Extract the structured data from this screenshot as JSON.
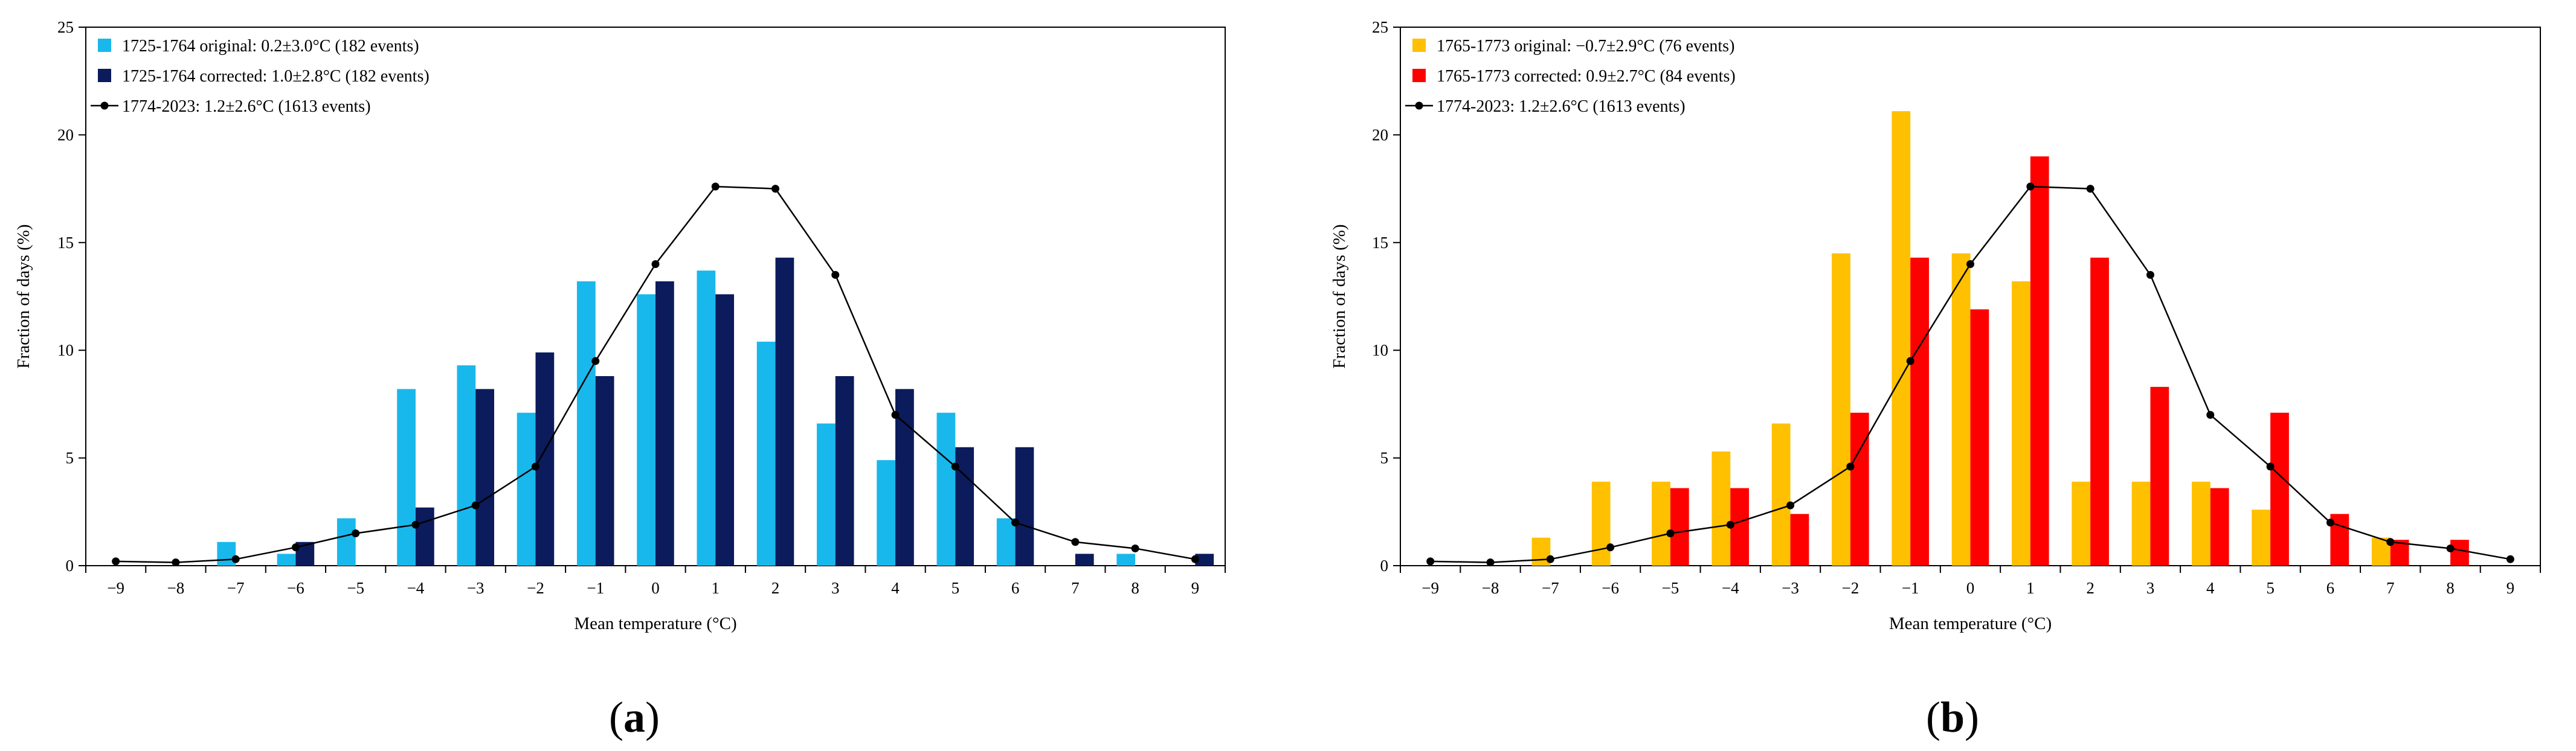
{
  "chart_data": [
    {
      "type": "bar",
      "panel_label_parts": [
        "(",
        "a",
        ")"
      ],
      "xlabel": "Mean temperature (°C)",
      "ylabel": "Fraction of days (%)",
      "ylim": [
        0,
        25
      ],
      "yticks": [
        0,
        5,
        10,
        15,
        20,
        25
      ],
      "categories": [
        -9,
        -8,
        -7,
        -6,
        -5,
        -4,
        -3,
        -2,
        -1,
        0,
        1,
        2,
        3,
        4,
        5,
        6,
        7,
        8,
        9
      ],
      "category_labels": [
        "−9",
        "−8",
        "−7",
        "−6",
        "−5",
        "−4",
        "−3",
        "−2",
        "−1",
        "0",
        "1",
        "2",
        "3",
        "4",
        "5",
        "6",
        "7",
        "8",
        "9"
      ],
      "grid": false,
      "legend_position": "top-left",
      "series": [
        {
          "name": "1725-1764 original: 0.2±3.0°C (182 events)",
          "kind": "bar",
          "color": "#19b8ec",
          "values": [
            0,
            0,
            1.1,
            0.55,
            2.2,
            8.2,
            9.3,
            7.1,
            13.2,
            12.6,
            13.7,
            10.4,
            6.6,
            4.9,
            7.1,
            2.2,
            0,
            0.55,
            0
          ]
        },
        {
          "name": "1725-1764 corrected: 1.0±2.8°C (182 events)",
          "kind": "bar",
          "color": "#0b1b5c",
          "values": [
            0,
            0,
            0,
            1.1,
            0,
            2.7,
            8.2,
            9.9,
            8.8,
            13.2,
            12.6,
            14.3,
            8.8,
            8.2,
            5.5,
            5.5,
            0.55,
            0,
            0.55
          ]
        },
        {
          "name": "1774-2023: 1.2±2.6°C (1613 events)",
          "kind": "line",
          "color": "#000000",
          "values": [
            0.2,
            0.15,
            0.3,
            0.85,
            1.5,
            1.9,
            2.8,
            4.6,
            9.5,
            14.0,
            17.6,
            17.5,
            13.5,
            7.0,
            4.6,
            2.0,
            1.1,
            0.8,
            0.3
          ]
        }
      ]
    },
    {
      "type": "bar",
      "panel_label_parts": [
        "(",
        "b",
        ")"
      ],
      "xlabel": "Mean temperature (°C)",
      "ylabel": "Fraction of days (%)",
      "ylim": [
        0,
        25
      ],
      "yticks": [
        0,
        5,
        10,
        15,
        20,
        25
      ],
      "categories": [
        -9,
        -8,
        -7,
        -6,
        -5,
        -4,
        -3,
        -2,
        -1,
        0,
        1,
        2,
        3,
        4,
        5,
        6,
        7,
        8,
        9
      ],
      "category_labels": [
        "−9",
        "−8",
        "−7",
        "−6",
        "−5",
        "−4",
        "−3",
        "−2",
        "−1",
        "0",
        "1",
        "2",
        "3",
        "4",
        "5",
        "6",
        "7",
        "8",
        "9"
      ],
      "grid": false,
      "legend_position": "top-left",
      "series": [
        {
          "name": "1765-1773 original: −0.7±2.9°C (76 events)",
          "kind": "bar",
          "color": "#ffc000",
          "values": [
            0,
            0,
            1.3,
            3.9,
            3.9,
            5.3,
            6.6,
            14.5,
            21.1,
            14.5,
            13.2,
            3.9,
            3.9,
            3.9,
            2.6,
            0,
            1.3,
            0,
            0
          ]
        },
        {
          "name": "1765-1773 corrected: 0.9±2.7°C (84 events)",
          "kind": "bar",
          "color": "#ff0000",
          "values": [
            0,
            0,
            0,
            0,
            3.6,
            3.6,
            2.4,
            7.1,
            14.3,
            11.9,
            19.0,
            14.3,
            8.3,
            3.6,
            7.1,
            2.4,
            1.2,
            1.2,
            0
          ]
        },
        {
          "name": "1774-2023: 1.2±2.6°C (1613 events)",
          "kind": "line",
          "color": "#000000",
          "values": [
            0.2,
            0.15,
            0.3,
            0.85,
            1.5,
            1.9,
            2.8,
            4.6,
            9.5,
            14.0,
            17.6,
            17.5,
            13.5,
            7.0,
            4.6,
            2.0,
            1.1,
            0.8,
            0.3
          ]
        }
      ]
    }
  ]
}
